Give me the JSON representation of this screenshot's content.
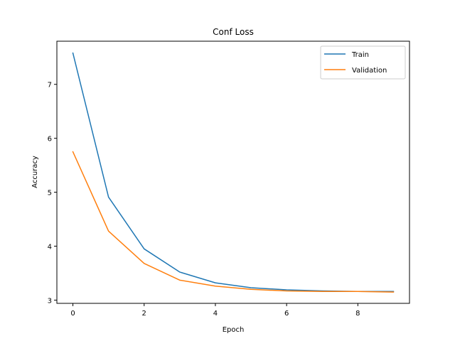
{
  "chart_data": {
    "type": "line",
    "title": "Conf Loss",
    "xlabel": "Epoch",
    "ylabel": "Accuracy",
    "x": [
      0,
      1,
      2,
      3,
      4,
      5,
      6,
      7,
      8,
      9
    ],
    "xlim": [
      -0.45,
      9.45
    ],
    "ylim": [
      2.94,
      7.8
    ],
    "xticks": [
      0,
      2,
      4,
      6,
      8
    ],
    "yticks": [
      3,
      4,
      5,
      6,
      7
    ],
    "grid": false,
    "legend_position": "top-right",
    "series": [
      {
        "name": "Train",
        "color": "#1f77b4",
        "values": [
          7.58,
          4.91,
          3.95,
          3.52,
          3.32,
          3.23,
          3.19,
          3.17,
          3.16,
          3.16
        ]
      },
      {
        "name": "Validation",
        "color": "#ff7f0e",
        "values": [
          5.75,
          4.28,
          3.68,
          3.37,
          3.26,
          3.2,
          3.17,
          3.16,
          3.16,
          3.15
        ]
      }
    ]
  }
}
